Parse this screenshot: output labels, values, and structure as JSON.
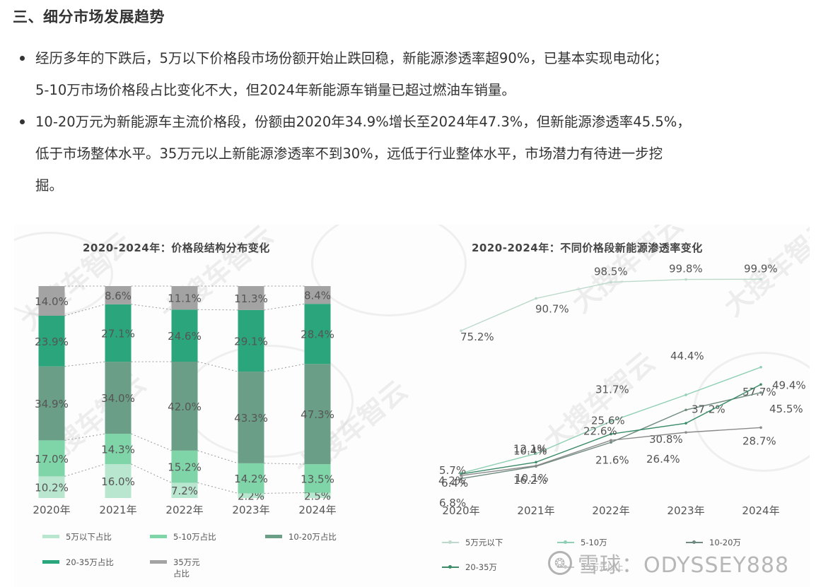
{
  "heading": "三、细分市场发展趋势",
  "bullets": [
    {
      "line1": "经历多年的下跌后，5万以下价格段市场份额开始止跌回稳，新能源渗透率超90%，已基本实现电动化；",
      "line2": "5-10万市场价格段占比变化不大，但2024年新能源车销量已超过燃油车销量。"
    },
    {
      "line1": "10-20万元为新能源车主流价格段，份额由2020年34.9%增长至2024年47.3%，但新能源渗透率45.5%，",
      "line2": "低于市场整体水平。35万元以上新能源渗透率不到30%，远低于行业整体水平，市场潜力有待进一步挖",
      "line3": "掘。"
    }
  ],
  "watermarks": {
    "chart_brand": "大搜车智云",
    "snowball_logo": "❂",
    "snowball_text": "雪球：ODYSSEY888"
  },
  "chart_data": [
    {
      "type": "bar",
      "stacked": true,
      "title": "2020-2024年：价格段结构分布变化",
      "categories": [
        "2020年",
        "2021年",
        "2022年",
        "2023年",
        "2024年"
      ],
      "series": [
        {
          "name": "5万以下占比",
          "color": "#b9e6cf",
          "values": [
            10.2,
            16.0,
            7.2,
            2.2,
            2.5
          ],
          "labels": [
            "10.2%",
            "16.0%",
            "7.2%",
            "2.2%",
            "2.5%"
          ]
        },
        {
          "name": "5-10万占比",
          "color": "#7fd4a8",
          "values": [
            17.0,
            14.3,
            15.2,
            14.2,
            13.5
          ],
          "labels": [
            "17.0%",
            "14.3%",
            "15.2%",
            "14.2%",
            "13.5%"
          ]
        },
        {
          "name": "10-20万占比",
          "color": "#6a9e87",
          "values": [
            34.9,
            34.0,
            42.0,
            43.3,
            47.3
          ],
          "labels": [
            "34.9%",
            "34.0%",
            "42.0%",
            "43.3%",
            "47.3%"
          ]
        },
        {
          "name": "20-35万占比",
          "color": "#2aa57c",
          "values": [
            23.9,
            27.1,
            24.6,
            29.1,
            28.4
          ],
          "labels": [
            "23.9%",
            "27.1%",
            "24.6%",
            "29.1%",
            "28.4%"
          ]
        },
        {
          "name": "35万元占比",
          "color": "#a3a3a3",
          "values": [
            14.0,
            8.6,
            11.1,
            11.3,
            8.4
          ],
          "labels": [
            "14.0%",
            "8.6%",
            "11.1%",
            "11.3%",
            "8.4%"
          ]
        }
      ],
      "legend": [
        "5万以下占比",
        "5-10万占比",
        "10-20万占比",
        "20-35万占比",
        "35万元占比"
      ],
      "xlabel": "",
      "ylabel": "",
      "ylim": [
        0,
        100
      ],
      "grid": false,
      "legend_position": "bottom"
    },
    {
      "type": "line",
      "title": "2020-2024年：不同价格段新能源渗透率变化",
      "categories": [
        "2020年",
        "2021年",
        "2022年",
        "2023年",
        "2024年"
      ],
      "series": [
        {
          "name": "5万元以下",
          "color": "#bcd9cb",
          "values": [
            75.2,
            90.7,
            98.5,
            99.8,
            99.9
          ],
          "labels": [
            "75.2%",
            "90.7%",
            "98.5%",
            "99.8%",
            "99.9%"
          ]
        },
        {
          "name": "5-10万",
          "color": "#8fcfb4",
          "values": [
            6.8,
            16.2,
            31.7,
            44.4,
            57.7
          ],
          "labels": [
            "6.8%",
            "16.2%",
            "31.7%",
            "44.4%",
            "57.7%"
          ]
        },
        {
          "name": "10-20万",
          "color": "#6f8a7e",
          "values": [
            4.2,
            10.1,
            21.6,
            37.2,
            45.5
          ],
          "labels": [
            "4.2%",
            "10.1%",
            "21.6%",
            "37.2%",
            "45.5%"
          ]
        },
        {
          "name": "20-35万",
          "color": "#3c8c6a",
          "values": [
            6.4,
            12.1,
            25.6,
            30.8,
            49.4
          ],
          "labels": [
            "6.4%",
            "12.1%",
            "25.6%",
            "30.8%",
            "49.4%"
          ]
        },
        {
          "name": "35万元以上",
          "color": "#8a8a8a",
          "values": [
            5.7,
            10.4,
            22.6,
            26.4,
            28.7
          ],
          "labels": [
            "5.7%",
            "10.4%",
            "22.6%",
            "26.4%",
            "28.7%"
          ]
        }
      ],
      "legend": [
        "5万元以下",
        "5-10万",
        "10-20万",
        "20-35万",
        "35万元以上"
      ],
      "xlabel": "",
      "ylabel": "",
      "ylim": [
        0,
        100
      ],
      "grid": false,
      "legend_position": "bottom"
    }
  ]
}
